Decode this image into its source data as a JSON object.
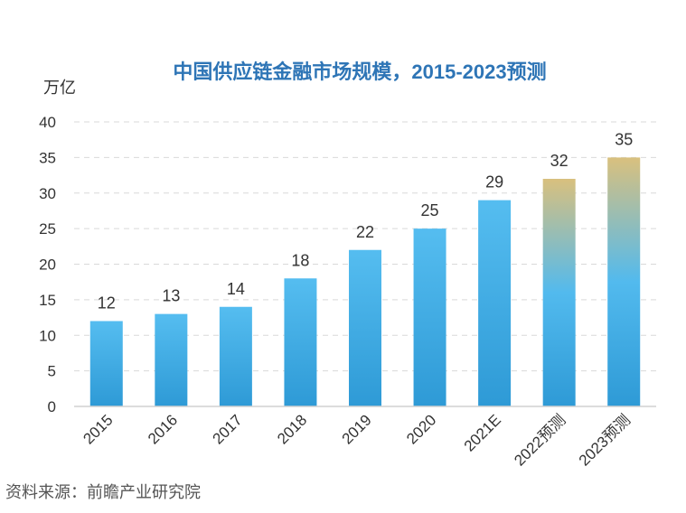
{
  "chart_data": {
    "type": "bar",
    "title": "中国供应链金融市场规模，2015-2023预测",
    "ylabel": "万亿",
    "xlabel": "",
    "categories": [
      "2015",
      "2016",
      "2017",
      "2018",
      "2019",
      "2020",
      "2021E",
      "2022预测",
      "2023预测"
    ],
    "values": [
      12,
      13,
      14,
      18,
      22,
      25,
      29,
      32,
      35
    ],
    "forecast": [
      false,
      false,
      false,
      false,
      false,
      false,
      false,
      true,
      true
    ],
    "ylim": [
      0,
      40
    ],
    "yticks": [
      0,
      5,
      10,
      15,
      20,
      25,
      30,
      35,
      40
    ],
    "grid": true,
    "source": "资料来源：前瞻产业研究院",
    "colors": {
      "title": "#2e75b6",
      "bar_top": "#55bdf0",
      "bar_bottom": "#2e9ad6",
      "forecast_top": "#d9c07e"
    }
  }
}
